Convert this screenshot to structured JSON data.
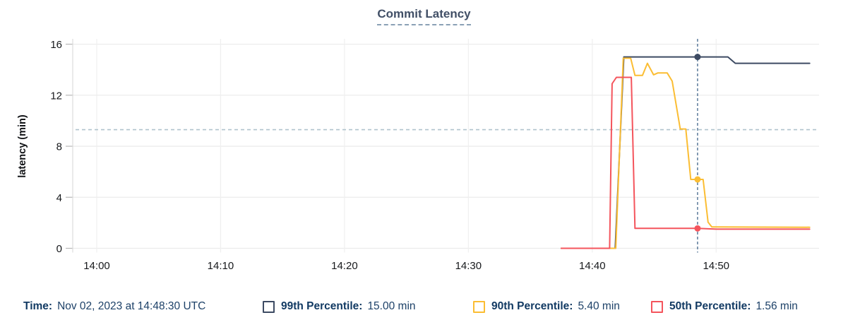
{
  "header": {
    "title": "Commit Latency"
  },
  "chart_data": {
    "type": "line",
    "title": "Commit Latency",
    "xlabel": "",
    "ylabel": "latency (min)",
    "x_ticks": [
      {
        "minutes": 0,
        "label": "14:00"
      },
      {
        "minutes": 10,
        "label": "14:10"
      },
      {
        "minutes": 20,
        "label": "14:20"
      },
      {
        "minutes": 30,
        "label": "14:30"
      },
      {
        "minutes": 40,
        "label": "14:40"
      },
      {
        "minutes": 50,
        "label": "14:50"
      }
    ],
    "y_ticks": [
      {
        "value": 0,
        "label": "0"
      },
      {
        "value": 4,
        "label": "4"
      },
      {
        "value": 8,
        "label": "8"
      },
      {
        "value": 12,
        "label": "12"
      },
      {
        "value": 16,
        "label": "16"
      }
    ],
    "ylim": [
      0,
      16.4
    ],
    "grid": true,
    "legend_position": "bottom",
    "threshold_line": {
      "value": 9.3,
      "style": "dashed",
      "color": "#b0c3cd"
    },
    "cursor": {
      "minutes": 48.5,
      "time_label": "Nov 02, 2023 at 14:48:30 UTC",
      "color": "#5b7a99"
    },
    "series": [
      {
        "name": "99th Percentile",
        "color": "#3d4b63",
        "cursor_value": 15.0,
        "points": [
          [
            37.5,
            0
          ],
          [
            41.85,
            0
          ],
          [
            42.55,
            15.0
          ],
          [
            50.95,
            15.0
          ],
          [
            51.55,
            14.5
          ],
          [
            57.55,
            14.5
          ]
        ]
      },
      {
        "name": "90th Percentile",
        "color": "#fbbd33",
        "cursor_value": 5.4,
        "points": [
          [
            37.5,
            0
          ],
          [
            41.9,
            0
          ],
          [
            42.5,
            14.9
          ],
          [
            43.1,
            14.9
          ],
          [
            43.45,
            13.55
          ],
          [
            44.05,
            13.55
          ],
          [
            44.45,
            14.5
          ],
          [
            44.95,
            13.6
          ],
          [
            45.3,
            13.75
          ],
          [
            46.05,
            13.75
          ],
          [
            46.45,
            13.1
          ],
          [
            47.1,
            9.35
          ],
          [
            47.55,
            9.35
          ],
          [
            47.95,
            5.4
          ],
          [
            48.95,
            5.4
          ],
          [
            49.35,
            2.05
          ],
          [
            49.65,
            1.68
          ],
          [
            57.55,
            1.65
          ]
        ]
      },
      {
        "name": "50th Percentile",
        "color": "#f4545c",
        "cursor_value": 1.56,
        "points": [
          [
            37.5,
            0
          ],
          [
            41.4,
            0
          ],
          [
            41.6,
            12.9
          ],
          [
            41.95,
            13.4
          ],
          [
            43.15,
            13.4
          ],
          [
            43.45,
            1.56
          ],
          [
            48.5,
            1.56
          ],
          [
            50.0,
            1.5
          ],
          [
            57.55,
            1.5
          ]
        ]
      }
    ]
  },
  "legend": {
    "time_label": "Time:",
    "time_value": "Nov 02, 2023 at 14:48:30 UTC",
    "items": [
      {
        "label": "99th Percentile:",
        "value": "15.00 min",
        "color": "#3d4b63"
      },
      {
        "label": "90th Percentile:",
        "value": "5.40 min",
        "color": "#fbbd33"
      },
      {
        "label": "50th Percentile:",
        "value": "1.56 min",
        "color": "#f4545c"
      }
    ]
  },
  "colors": {
    "title": "#414f66",
    "legend_text": "#123a63",
    "grid": "#ebebeb",
    "axis_text": "#17191c"
  }
}
